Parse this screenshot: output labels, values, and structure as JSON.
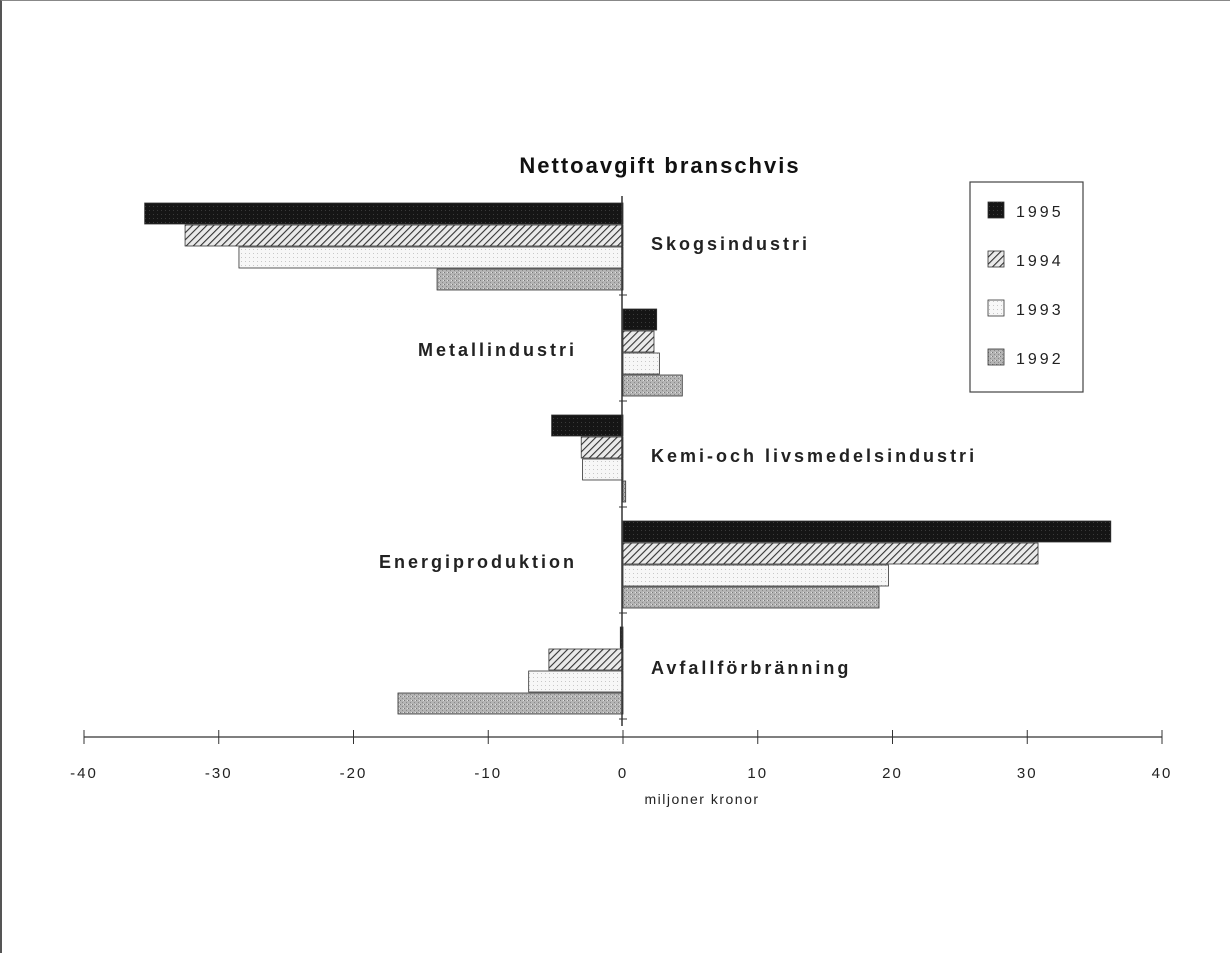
{
  "chart_data": {
    "type": "bar",
    "orientation": "horizontal",
    "title": "Nettoavgift branschvis",
    "xlabel": "miljoner kronor",
    "ylabel": "",
    "xlim": [
      -40,
      40
    ],
    "xticks": [
      -40,
      -30,
      -20,
      -10,
      0,
      10,
      20,
      30,
      40
    ],
    "xtick_labels": [
      "-40",
      "-30",
      "-20",
      "-10",
      "0",
      "10",
      "20",
      "30",
      "40"
    ],
    "categories": [
      "Skogsindustri",
      "Metallindustri",
      "Kemi-och livsmedelsindustri",
      "Energiproduktion",
      "Avfallförbränning"
    ],
    "series": [
      {
        "name": "1995",
        "color": "#111111",
        "pattern": "solid",
        "values": [
          -35.5,
          2.5,
          -5.3,
          36.2,
          -0.2
        ]
      },
      {
        "name": "1994",
        "color": "#555555",
        "pattern": "hatch",
        "values": [
          -32.5,
          2.3,
          -3.1,
          30.8,
          -5.5
        ]
      },
      {
        "name": "1993",
        "color": "#eeeeee",
        "pattern": "light",
        "values": [
          -28.5,
          2.7,
          -3.0,
          19.7,
          -7.0
        ]
      },
      {
        "name": "1992",
        "color": "#aaaaaa",
        "pattern": "stipple",
        "values": [
          -13.8,
          4.4,
          0.2,
          19.0,
          -16.7
        ]
      }
    ],
    "legend": {
      "position": "top-right",
      "order": [
        "1995",
        "1994",
        "1993",
        "1992"
      ]
    },
    "grid": false
  }
}
